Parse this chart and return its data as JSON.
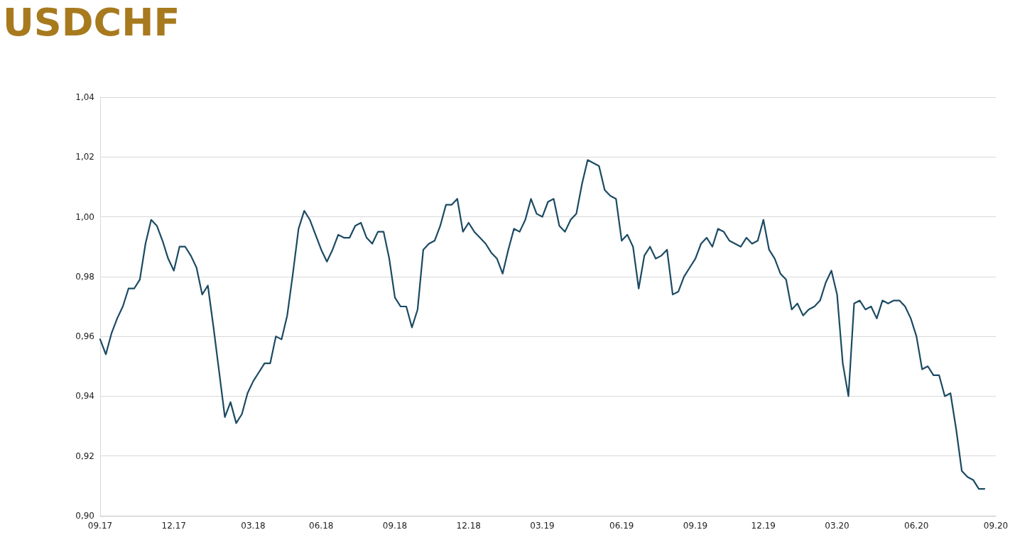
{
  "chart_data": {
    "type": "line",
    "title": "USDCHF",
    "categories": [
      "09.17",
      null,
      null,
      null,
      null,
      null,
      null,
      null,
      null,
      null,
      null,
      null,
      null,
      "12.17",
      null,
      null,
      null,
      null,
      null,
      null,
      null,
      null,
      null,
      null,
      null,
      null,
      null,
      "03.18",
      null,
      null,
      null,
      null,
      null,
      null,
      null,
      null,
      null,
      null,
      null,
      "06.18",
      null,
      null,
      null,
      null,
      null,
      null,
      null,
      null,
      null,
      null,
      null,
      null,
      "09.18",
      null,
      null,
      null,
      null,
      null,
      null,
      null,
      null,
      null,
      null,
      null,
      null,
      "12.18",
      null,
      null,
      null,
      null,
      null,
      null,
      null,
      null,
      null,
      null,
      null,
      null,
      "03.19",
      null,
      null,
      null,
      null,
      null,
      null,
      null,
      null,
      null,
      null,
      null,
      null,
      null,
      "06.19",
      null,
      null,
      null,
      null,
      null,
      null,
      null,
      null,
      null,
      null,
      null,
      null,
      "09.19",
      null,
      null,
      null,
      null,
      null,
      null,
      null,
      null,
      null,
      null,
      null,
      "12.19",
      null,
      null,
      null,
      null,
      null,
      null,
      null,
      null,
      null,
      null,
      null,
      null,
      "03.20",
      null,
      null,
      null,
      null,
      null,
      null,
      null,
      null,
      null,
      null,
      null,
      null,
      null,
      "06.20",
      null,
      null,
      null,
      null,
      null,
      null,
      null,
      null,
      null,
      null,
      null,
      null,
      null,
      "09.20"
    ],
    "series": [
      {
        "color": "#1b4a63",
        "values": [
          0.959,
          0.954,
          0.961,
          0.966,
          0.97,
          0.976,
          0.976,
          0.979,
          0.991,
          0.999,
          0.997,
          0.992,
          0.986,
          0.982,
          0.99,
          0.99,
          0.987,
          0.983,
          0.974,
          0.977,
          0.963,
          0.948,
          0.933,
          0.938,
          0.931,
          0.934,
          0.941,
          0.945,
          0.948,
          0.951,
          0.951,
          0.96,
          0.959,
          0.967,
          0.981,
          0.996,
          1.002,
          0.999,
          0.994,
          0.989,
          0.985,
          0.989,
          0.994,
          0.993,
          0.993,
          0.997,
          0.998,
          0.993,
          0.991,
          0.995,
          0.995,
          0.986,
          0.973,
          0.97,
          0.97,
          0.963,
          0.969,
          0.989,
          0.991,
          0.992,
          0.997,
          1.004,
          1.004,
          1.006,
          0.995,
          0.998,
          0.995,
          0.993,
          0.991,
          0.988,
          0.986,
          0.981,
          0.989,
          0.996,
          0.995,
          0.999,
          1.006,
          1.001,
          1.0,
          1.005,
          1.006,
          0.997,
          0.995,
          0.999,
          1.001,
          1.011,
          1.019,
          1.018,
          1.017,
          1.009,
          1.007,
          1.006,
          0.992,
          0.994,
          0.99,
          0.976,
          0.987,
          0.99,
          0.986,
          0.987,
          0.989,
          0.974,
          0.975,
          0.98,
          0.983,
          0.986,
          0.991,
          0.993,
          0.99,
          0.996,
          0.995,
          0.992,
          0.991,
          0.99,
          0.993,
          0.991,
          0.992,
          0.999,
          0.989,
          0.986,
          0.981,
          0.979,
          0.969,
          0.971,
          0.967,
          0.969,
          0.97,
          0.972,
          0.978,
          0.982,
          0.974,
          0.951,
          0.94,
          0.971,
          0.972,
          0.969,
          0.97,
          0.966,
          0.972,
          0.971,
          0.972,
          0.972,
          0.97,
          0.966,
          0.96,
          0.949,
          0.95,
          0.947,
          0.947,
          0.94,
          0.941,
          0.929,
          0.915,
          0.913,
          0.912,
          0.909,
          0.909,
          null,
          null
        ]
      }
    ],
    "ylim": [
      0.9,
      1.04
    ],
    "yticks": [
      {
        "value": 0.9,
        "label": "0,90"
      },
      {
        "value": 0.92,
        "label": "0,92"
      },
      {
        "value": 0.94,
        "label": "0,94"
      },
      {
        "value": 0.96,
        "label": "0,96"
      },
      {
        "value": 0.98,
        "label": "0,98"
      },
      {
        "value": 1.0,
        "label": "1,00"
      },
      {
        "value": 1.02,
        "label": "1,02"
      },
      {
        "value": 1.04,
        "label": "1,04"
      }
    ],
    "grid": "y",
    "marker": "none",
    "line_style": "solid"
  }
}
